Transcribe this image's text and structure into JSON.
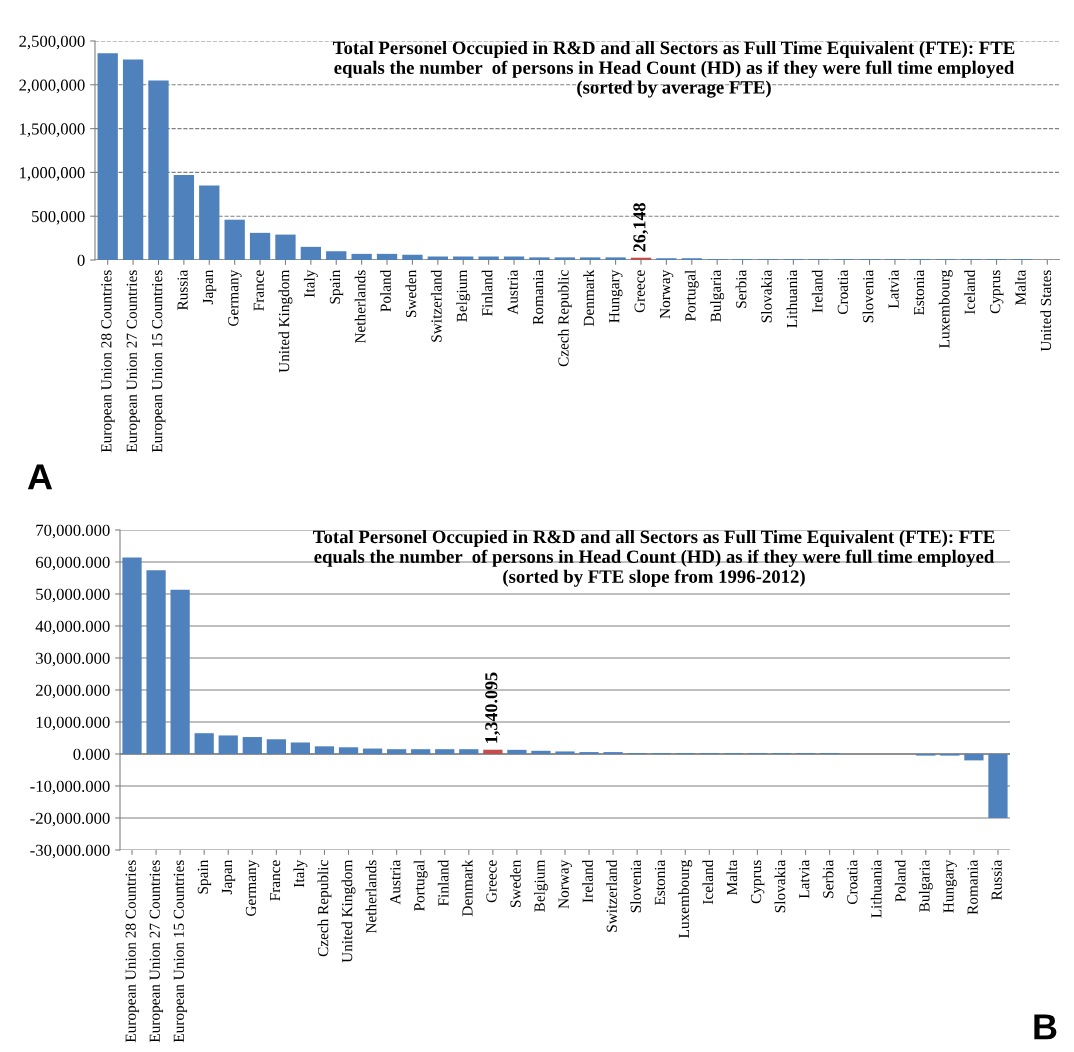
{
  "chart_data": [
    {
      "type": "bar",
      "title": "Total Personel Occupied in R&D and all Sectors as Full Time Equivalent (FTE): FTE\nequals the number  of persons in Head Count (HD) as if they were full time employed\n(sorted by average FTE)",
      "categories": [
        "European Union 28 Countries",
        "European Union 27 Countries",
        "European Union 15 Countries",
        "Russia",
        "Japan",
        "Germany",
        "France",
        "United Kingdom",
        "Italy",
        "Spain",
        "Netherlands",
        "Poland",
        "Sweden",
        "Switzerland",
        "Belgium",
        "Finland",
        "Austria",
        "Romania",
        "Czech Republic",
        "Denmark",
        "Hungary",
        "Greece",
        "Norway",
        "Portugal",
        "Bulgaria",
        "Serbia",
        "Slovakia",
        "Lithuania",
        "Ireland",
        "Croatia",
        "Slovenia",
        "Latvia",
        "Estonia",
        "Luxembourg",
        "Iceland",
        "Cyprus",
        "Malta",
        "United States"
      ],
      "values": [
        2360000,
        2290000,
        2050000,
        970000,
        850000,
        460000,
        310000,
        290000,
        150000,
        100000,
        70000,
        70000,
        60000,
        40000,
        40000,
        40000,
        40000,
        30000,
        30000,
        30000,
        30000,
        26148,
        20000,
        20000,
        10000,
        10000,
        10000,
        10000,
        10000,
        10000,
        10000,
        10000,
        10000,
        10000,
        10000,
        10000,
        10000,
        null
      ],
      "colors": [
        "#4f81bd",
        "#4f81bd",
        "#4f81bd",
        "#4f81bd",
        "#4f81bd",
        "#4f81bd",
        "#4f81bd",
        "#4f81bd",
        "#4f81bd",
        "#4f81bd",
        "#4f81bd",
        "#4f81bd",
        "#4f81bd",
        "#4f81bd",
        "#4f81bd",
        "#4f81bd",
        "#4f81bd",
        "#4f81bd",
        "#4f81bd",
        "#4f81bd",
        "#4f81bd",
        "#c0504d",
        "#4f81bd",
        "#4f81bd",
        "#4f81bd",
        "#4f81bd",
        "#4f81bd",
        "#4f81bd",
        "#4f81bd",
        "#4f81bd",
        "#4f81bd",
        "#4f81bd",
        "#4f81bd",
        "#4f81bd",
        "#4f81bd",
        "#4f81bd",
        "#4f81bd",
        "#4f81bd"
      ],
      "value_labels": [
        null,
        null,
        null,
        null,
        null,
        null,
        null,
        null,
        null,
        null,
        null,
        null,
        null,
        null,
        null,
        null,
        null,
        null,
        null,
        null,
        null,
        "26,148",
        null,
        null,
        null,
        null,
        null,
        null,
        null,
        null,
        null,
        null,
        null,
        null,
        null,
        null,
        null,
        null
      ],
      "ylim": [
        0,
        2500000
      ],
      "yticks": [
        0,
        {
          "value": 500000,
          "label": "500,000"
        },
        {
          "value": 1000000,
          "label": "1,000,000"
        },
        {
          "value": 1500000,
          "label": "1,500,000"
        },
        {
          "value": 2000000,
          "label": "2,000,000"
        },
        {
          "value": 2500000,
          "label": "2,500,000"
        }
      ],
      "grid": "y",
      "annotations": [
        "A"
      ]
    },
    {
      "type": "bar",
      "title": "Total Personel Occupied in R&D and all Sectors as Full Time Equivalent (FTE): FTE\nequals the number  of persons in Head Count (HD) as if they were full time employed\n(sorted by FTE slope from 1996-2012)",
      "categories": [
        "European Union 28 Countries",
        "European Union 27 Countries",
        "European Union 15 Countries",
        "Spain",
        "Japan",
        "Germany",
        "France",
        "Italy",
        "Czech Republic",
        "United Kingdom",
        "Netherlands",
        "Austria",
        "Portugal",
        "Finland",
        "Denmark",
        "Greece",
        "Sweden",
        "Belgium",
        "Norway",
        "Ireland",
        "Switzerland",
        "Slovenia",
        "Estonia",
        "Luxembourg",
        "Iceland",
        "Malta",
        "Cyprus",
        "Slovakia",
        "Latvia",
        "Serbia",
        "Croatia",
        "Lithuania",
        "Poland",
        "Bulgaria",
        "Hungary",
        "Romania",
        "Russia"
      ],
      "values": [
        61400,
        57400,
        51300,
        6500,
        5800,
        5300,
        4600,
        3600,
        2400,
        2100,
        1700,
        1500,
        1500,
        1500,
        1500,
        1340.095,
        1300,
        1000,
        800,
        600,
        600,
        300,
        300,
        300,
        300,
        300,
        300,
        300,
        300,
        300,
        0,
        0,
        0,
        -500,
        -500,
        -2000,
        -20000
      ],
      "colors": [
        "#4f81bd",
        "#4f81bd",
        "#4f81bd",
        "#4f81bd",
        "#4f81bd",
        "#4f81bd",
        "#4f81bd",
        "#4f81bd",
        "#4f81bd",
        "#4f81bd",
        "#4f81bd",
        "#4f81bd",
        "#4f81bd",
        "#4f81bd",
        "#4f81bd",
        "#c0504d",
        "#4f81bd",
        "#4f81bd",
        "#4f81bd",
        "#4f81bd",
        "#4f81bd",
        "#4f81bd",
        "#4f81bd",
        "#4f81bd",
        "#4f81bd",
        "#4f81bd",
        "#4f81bd",
        "#4f81bd",
        "#4f81bd",
        "#4f81bd",
        "#4f81bd",
        "#4f81bd",
        "#4f81bd",
        "#4f81bd",
        "#4f81bd",
        "#4f81bd",
        "#4f81bd"
      ],
      "value_labels": [
        null,
        null,
        null,
        null,
        null,
        null,
        null,
        null,
        null,
        null,
        null,
        null,
        null,
        null,
        null,
        "1,340.095",
        null,
        null,
        null,
        null,
        null,
        null,
        null,
        null,
        null,
        null,
        null,
        null,
        null,
        null,
        null,
        null,
        null,
        null,
        null,
        null,
        null
      ],
      "ylim": [
        -30000,
        70000
      ],
      "yticks": [
        {
          "value": -30000,
          "label": "-30,000.000"
        },
        {
          "value": -20000,
          "label": "-20,000.000"
        },
        {
          "value": -10000,
          "label": "-10,000.000"
        },
        {
          "value": 0,
          "label": "0.000"
        },
        {
          "value": 10000,
          "label": "10,000.000"
        },
        {
          "value": 20000,
          "label": "20,000.000"
        },
        {
          "value": 30000,
          "label": "30,000.000"
        },
        {
          "value": 40000,
          "label": "40,000.000"
        },
        {
          "value": 50000,
          "label": "50,000.000"
        },
        {
          "value": 60000,
          "label": "60,000.000"
        },
        {
          "value": 70000,
          "label": "70,000.000"
        }
      ],
      "grid": "y",
      "annotations": [
        "B"
      ]
    }
  ]
}
